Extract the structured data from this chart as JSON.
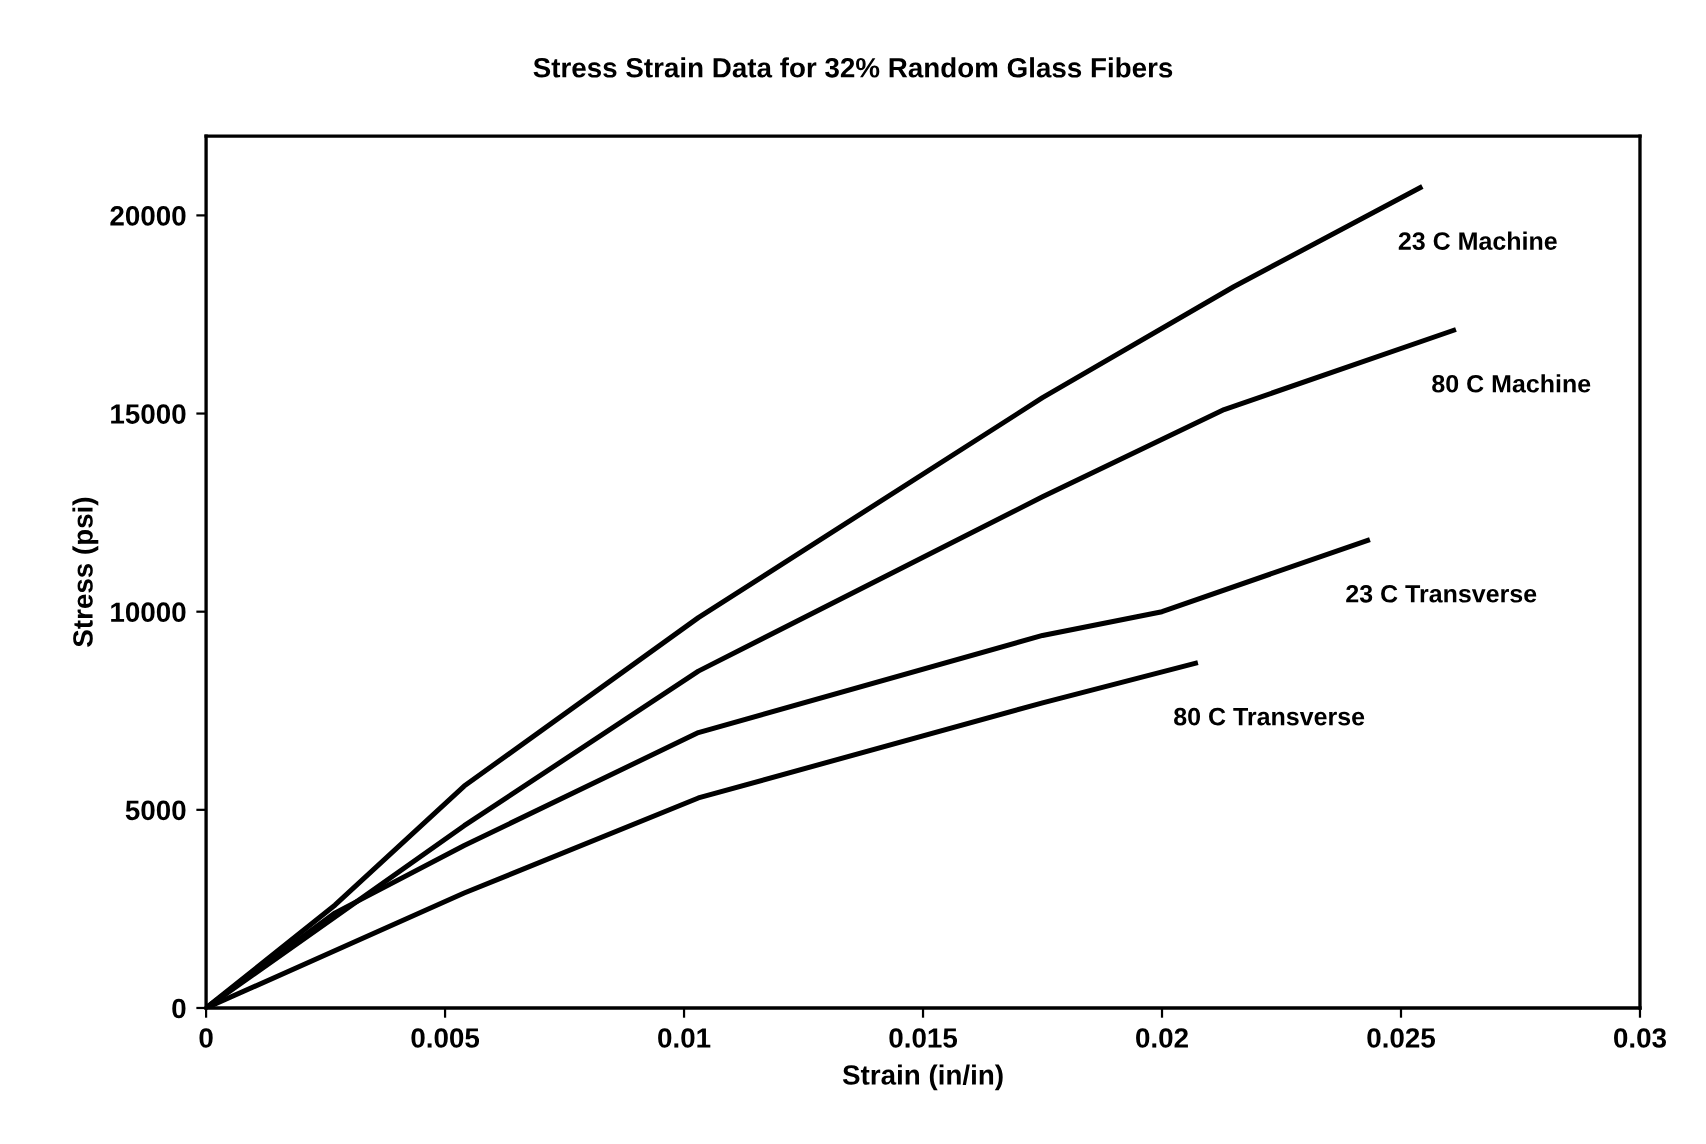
{
  "chart_data": {
    "type": "line",
    "title": "Stress Strain Data for 32% Random Glass Fibers",
    "xlabel": "Strain (in/in)",
    "ylabel": "Stress (psi)",
    "xlim": [
      0,
      0.03
    ],
    "xticks": [
      0,
      0.005,
      0.01,
      0.015,
      0.02,
      0.025,
      0.03
    ],
    "ylim": [
      0,
      22000
    ],
    "yticks": [
      0,
      5000,
      10000,
      15000,
      20000
    ],
    "grid": false,
    "legend": false,
    "marker": "none",
    "line_style": "solid",
    "series": [
      {
        "name": "23 C Machine",
        "color": "#000000",
        "x": [
          0,
          0.0027,
          0.0054,
          0.0103,
          0.0175,
          0.0215,
          0.0254
        ],
        "values": [
          0,
          2600,
          5600,
          9850,
          15400,
          18200,
          20700
        ]
      },
      {
        "name": "80 C Machine",
        "color": "#000000",
        "x": [
          0,
          0.0054,
          0.0103,
          0.0175,
          0.0213,
          0.0261
        ],
        "values": [
          0,
          4600,
          8500,
          12900,
          15100,
          17100
        ]
      },
      {
        "name": "23 C Transverse",
        "color": "#000000",
        "x": [
          0,
          0.0027,
          0.0054,
          0.0103,
          0.0175,
          0.02,
          0.0243
        ],
        "values": [
          0,
          2400,
          4100,
          6950,
          9400,
          10000,
          11800
        ]
      },
      {
        "name": "80 C Transverse",
        "color": "#000000",
        "x": [
          0,
          0.0054,
          0.0103,
          0.0175,
          0.0207
        ],
        "values": [
          0,
          2900,
          5300,
          7700,
          8700
        ]
      }
    ]
  }
}
